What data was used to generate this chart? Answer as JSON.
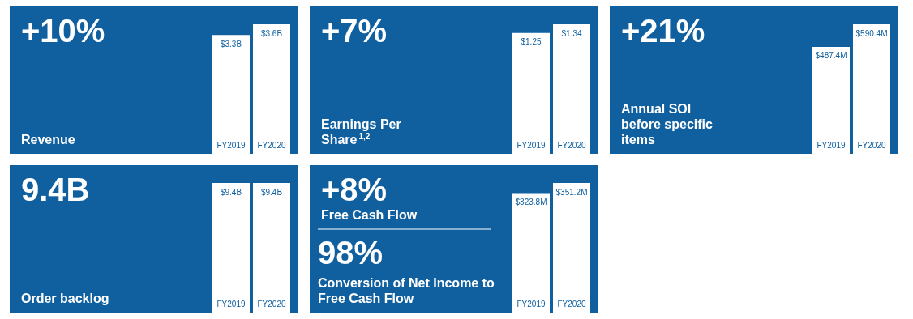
{
  "chart_data": [
    {
      "type": "bar",
      "title": "+10%",
      "annotations": [
        "Revenue"
      ],
      "categories": [
        "FY2019",
        "FY2020"
      ],
      "values": [
        3.3,
        3.6
      ],
      "value_labels": [
        "$3.3B",
        "$3.6B"
      ],
      "color": "#ffffff"
    },
    {
      "type": "bar",
      "title": "+7%",
      "annotations": [
        "Earnings Per Share$^{1,2}$"
      ],
      "categories": [
        "FY2019",
        "FY2020"
      ],
      "values": [
        1.25,
        1.34
      ],
      "value_labels": [
        "$1.25",
        "$1.34"
      ],
      "color": "#ffffff"
    },
    {
      "type": "bar",
      "title": "+21%",
      "annotations": [
        "Annual SOI before specific items"
      ],
      "categories": [
        "FY2019",
        "FY2020"
      ],
      "values": [
        487.4,
        590.4
      ],
      "value_labels": [
        "$487.4M",
        "$590.4M"
      ],
      "color": "#ffffff"
    },
    {
      "type": "bar",
      "title": "9.4B",
      "annotations": [
        "Order backlog"
      ],
      "categories": [
        "FY2019",
        "FY2020"
      ],
      "values": [
        9.4,
        9.4
      ],
      "value_labels": [
        "$9.4B",
        "$9.4B"
      ],
      "color": "#ffffff"
    },
    {
      "type": "bar",
      "title": "+8%",
      "annotations": [
        "Free Cash Flow",
        "98%",
        "Conversion of Net Income to Free Cash Flow"
      ],
      "categories": [
        "FY2019",
        "FY2020"
      ],
      "values": [
        323.8,
        351.2
      ],
      "value_labels": [
        "$323.8M",
        "$351.2M"
      ],
      "color": "#ffffff"
    }
  ]
}
